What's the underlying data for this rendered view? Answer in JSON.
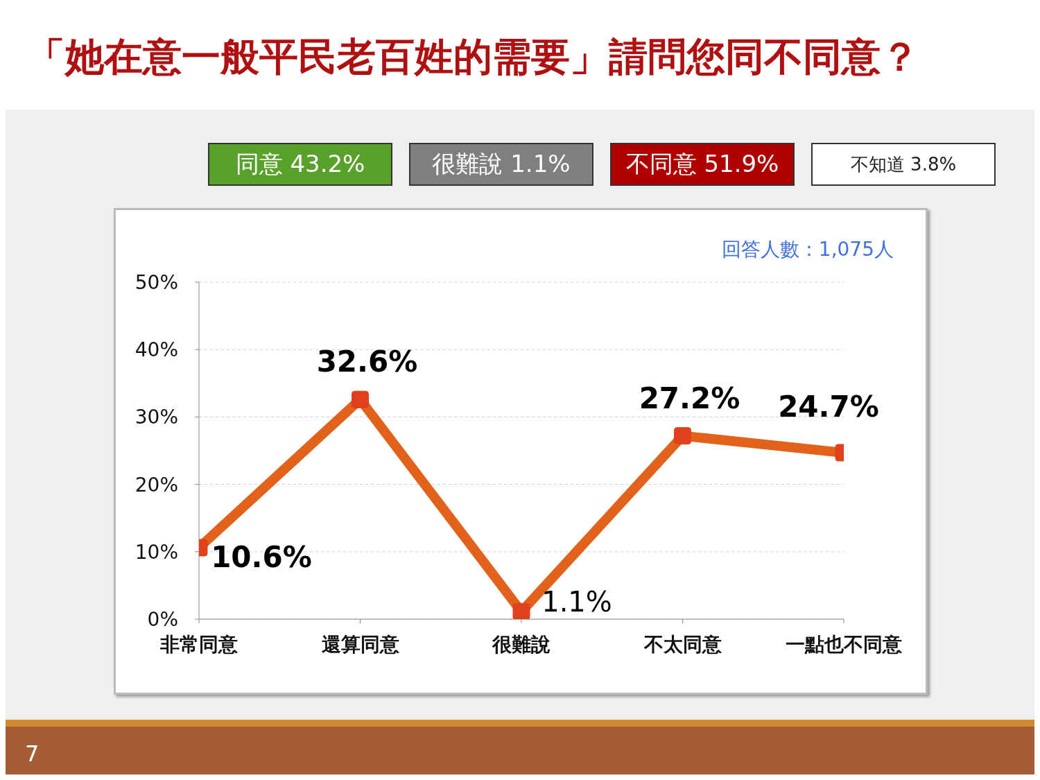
{
  "chart_data": {
    "type": "line",
    "title": "「她在意一般平民老百姓的需要」請問您同不同意？",
    "categories": [
      "非常同意",
      "還算同意",
      "很難說",
      "不太同意",
      "一點也不同意"
    ],
    "series": [
      {
        "color": "#e2621b",
        "values": [
          10.6,
          32.6,
          1.1,
          27.2,
          24.7
        ],
        "value_labels": [
          "10.6%",
          "32.6%",
          "1.1%",
          "27.2%",
          "24.7%"
        ]
      }
    ],
    "ylim": [
      0,
      50
    ],
    "yticks": [
      {
        "value": 0,
        "label": "0%"
      },
      {
        "value": 10,
        "label": "10%"
      },
      {
        "value": 20,
        "label": "20%"
      },
      {
        "value": 30,
        "label": "30%"
      },
      {
        "value": 40,
        "label": "40%"
      },
      {
        "value": 50,
        "label": "50%"
      }
    ],
    "grid": "y",
    "marker": "square",
    "line_style": "solid",
    "legend": false,
    "annotations": [
      "同意 43.2%",
      "很難說 1.1%",
      "不同意 51.9%",
      "不知道 3.8%",
      "回答人數：1,075人",
      "7"
    ]
  }
}
